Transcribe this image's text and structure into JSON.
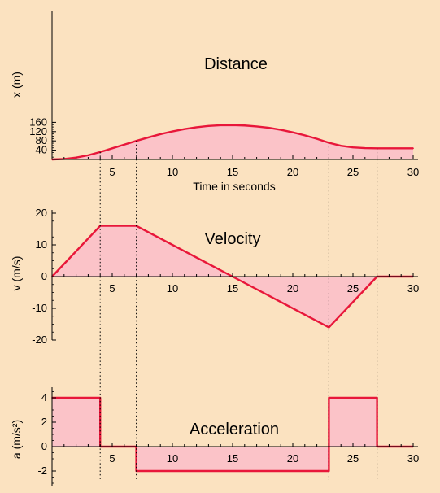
{
  "style": {
    "background": "#fbe2c0",
    "fill": "#fbc3c8",
    "line": "#e8173a",
    "guide": "#000000"
  },
  "guide_times": [
    4,
    7,
    23,
    27
  ],
  "chart_data": [
    {
      "id": "distance",
      "type": "area",
      "title": "Distance",
      "ylabel": "x (m)",
      "xlabel": "Time in seconds",
      "xlim": [
        0,
        30
      ],
      "ylim": [
        0,
        160
      ],
      "xticks": [
        "5",
        "10",
        "15",
        "20",
        "25",
        "30"
      ],
      "yticks": [
        "40",
        "80",
        "120",
        "160"
      ],
      "x": [
        0,
        1,
        2,
        3,
        4,
        5,
        6,
        7,
        8,
        9,
        10,
        11,
        12,
        13,
        14,
        15,
        16,
        17,
        18,
        19,
        20,
        21,
        22,
        23,
        24,
        25,
        26,
        27,
        28,
        29,
        30
      ],
      "y": [
        0,
        2,
        8,
        18,
        32,
        48,
        64,
        80,
        95,
        109,
        121,
        131,
        139,
        144.5,
        147.5,
        148,
        146.5,
        142.5,
        136.5,
        128,
        117,
        104,
        89,
        72,
        59,
        52,
        49,
        48,
        48,
        48,
        48
      ]
    },
    {
      "id": "velocity",
      "type": "area",
      "title": "Velocity",
      "ylabel": "v (m/s)",
      "xlim": [
        0,
        30
      ],
      "ylim": [
        -20,
        20
      ],
      "xticks": [
        "5",
        "10",
        "15",
        "20",
        "25",
        "30"
      ],
      "yticks": [
        "20",
        "10",
        "0",
        "-10",
        "-20"
      ],
      "x": [
        0,
        4,
        7,
        15,
        23,
        27,
        30
      ],
      "y": [
        0,
        16,
        16,
        0,
        -16,
        0,
        0
      ]
    },
    {
      "id": "acceleration",
      "type": "area",
      "title": "Acceleration",
      "ylabel": "a (m/s²)",
      "xlim": [
        0,
        30
      ],
      "ylim": [
        -3,
        5
      ],
      "xticks": [
        "5",
        "10",
        "15",
        "20",
        "25",
        "30"
      ],
      "yticks": [
        "4",
        "2",
        "0",
        "-2"
      ],
      "x": [
        0,
        4,
        4,
        7,
        7,
        23,
        23,
        27,
        27,
        30
      ],
      "y": [
        4,
        4,
        0,
        0,
        -2,
        -2,
        4,
        4,
        0,
        0
      ]
    }
  ]
}
